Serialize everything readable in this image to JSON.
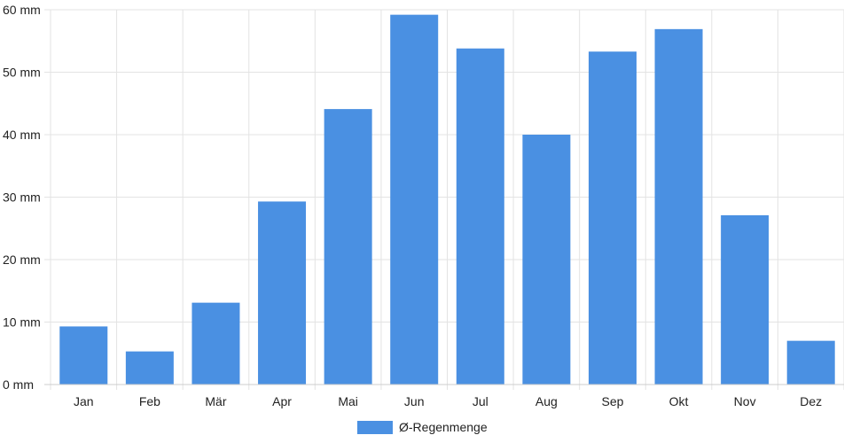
{
  "chart_data": {
    "type": "bar",
    "categories": [
      "Jan",
      "Feb",
      "Mär",
      "Apr",
      "Mai",
      "Jun",
      "Jul",
      "Aug",
      "Sep",
      "Okt",
      "Nov",
      "Dez"
    ],
    "series": [
      {
        "name": "Ø-Regenmenge",
        "values": [
          9.3,
          5.3,
          13.1,
          29.3,
          44.1,
          59.2,
          53.8,
          40.0,
          53.3,
          56.9,
          27.1,
          7.0
        ],
        "color": "#4a90e2"
      }
    ],
    "yticks": [
      "0 mm",
      "10 mm",
      "20 mm",
      "30 mm",
      "40 mm",
      "50 mm",
      "60 mm"
    ],
    "ylim": [
      0,
      60
    ],
    "y_unit": "mm",
    "grid": true,
    "legend_position": "bottom",
    "title": "",
    "xlabel": "",
    "ylabel": ""
  }
}
